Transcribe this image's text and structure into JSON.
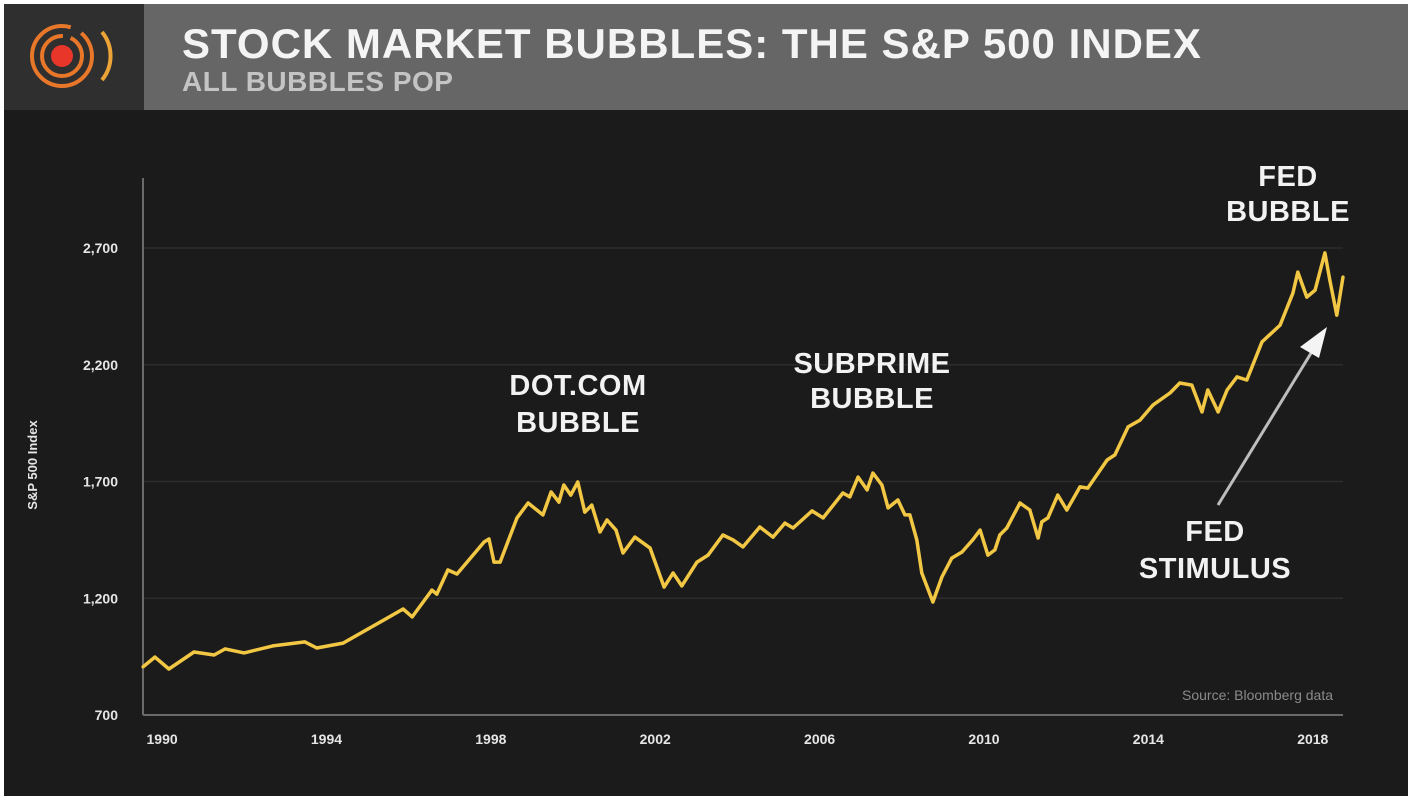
{
  "header": {
    "title": "STOCK MARKET BUBBLES: THE S&P 500 INDEX",
    "subtitle": "ALL BUBBLES POP",
    "logo_icon": "concentric-target-icon"
  },
  "colors": {
    "line": "#f2c744",
    "background": "#1b1b1b",
    "header": "#666666",
    "logo_orange": "#e8772a",
    "logo_red": "#e8362a"
  },
  "chart_data": {
    "type": "line",
    "title": "STOCK MARKET BUBBLES: THE S&P 500 INDEX",
    "subtitle": "ALL BUBBLES POP",
    "xlabel": "",
    "ylabel": "S&P 500 Index",
    "xlim": [
      1989.56,
      2018.76
    ],
    "ylim": [
      700,
      3000
    ],
    "grid": true,
    "x_ticks": [
      1990,
      1994,
      1998,
      2002,
      2006,
      2010,
      2014,
      2018
    ],
    "x_tick_labels": [
      "1990",
      "1994",
      "1998",
      "2002",
      "2006",
      "2010",
      "2014",
      "2018"
    ],
    "y_ticks": [
      700,
      1200,
      1700,
      2200,
      2700
    ],
    "y_tick_labels": [
      "700",
      "1,200",
      "1,700",
      "2,200",
      "2,700"
    ],
    "series": [
      {
        "name": "S&P 500 Index",
        "x": [
          1989.56,
          1989.85,
          1990.19,
          1990.8,
          1991.29,
          1991.56,
          1992.02,
          1992.72,
          1993.5,
          1993.79,
          1994.43,
          1995.33,
          1995.89,
          1996.11,
          1996.59,
          1996.71,
          1996.98,
          1997.2,
          1997.86,
          1997.98,
          1998.1,
          1998.25,
          1998.66,
          1998.93,
          1999.29,
          1999.49,
          1999.68,
          1999.8,
          1999.97,
          2000.14,
          2000.31,
          2000.48,
          2000.68,
          2000.85,
          2001.07,
          2001.24,
          2001.53,
          2001.9,
          2002.24,
          2002.46,
          2002.67,
          2003.04,
          2003.31,
          2003.67,
          2003.92,
          2004.16,
          2004.57,
          2004.89,
          2005.18,
          2005.38,
          2005.84,
          2006.11,
          2006.59,
          2006.76,
          2006.96,
          2007.18,
          2007.32,
          2007.54,
          2007.69,
          2007.93,
          2008.1,
          2008.22,
          2008.39,
          2008.51,
          2008.78,
          2009.0,
          2009.24,
          2009.49,
          2009.75,
          2009.93,
          2010.12,
          2010.29,
          2010.41,
          2010.58,
          2010.9,
          2011.14,
          2011.34,
          2011.43,
          2011.58,
          2011.82,
          2012.04,
          2012.36,
          2012.55,
          2013.02,
          2013.21,
          2013.53,
          2013.82,
          2014.14,
          2014.55,
          2014.79,
          2015.08,
          2015.33,
          2015.47,
          2015.72,
          2015.94,
          2016.18,
          2016.42,
          2016.79,
          2017.23,
          2017.54,
          2017.66,
          2017.88,
          2018.08,
          2018.32,
          2018.44,
          2018.61,
          2018.76
        ],
        "y": [
          906,
          948,
          897,
          970,
          957,
          983,
          966,
          996,
          1013,
          987,
          1008,
          1098,
          1154,
          1120,
          1235,
          1218,
          1321,
          1304,
          1441,
          1454,
          1355,
          1355,
          1544,
          1608,
          1557,
          1655,
          1612,
          1685,
          1642,
          1698,
          1569,
          1599,
          1484,
          1535,
          1492,
          1394,
          1462,
          1415,
          1248,
          1308,
          1253,
          1355,
          1385,
          1471,
          1450,
          1420,
          1505,
          1462,
          1522,
          1501,
          1574,
          1544,
          1651,
          1634,
          1719,
          1664,
          1736,
          1685,
          1587,
          1621,
          1557,
          1557,
          1450,
          1308,
          1184,
          1291,
          1372,
          1398,
          1450,
          1492,
          1385,
          1407,
          1471,
          1501,
          1608,
          1578,
          1458,
          1527,
          1544,
          1642,
          1578,
          1677,
          1672,
          1792,
          1814,
          1934,
          1963,
          2028,
          2079,
          2122,
          2113,
          1998,
          2092,
          1998,
          2092,
          2148,
          2135,
          2298,
          2370,
          2507,
          2597,
          2490,
          2520,
          2679,
          2563,
          2413,
          2576
        ]
      }
    ],
    "annotations": {
      "dotcom": [
        "DOT.COM",
        "BUBBLE"
      ],
      "subprime": [
        "SUBPRIME",
        "BUBBLE"
      ],
      "fed_bubble": [
        "FED",
        "BUBBLE"
      ],
      "fed_stimulus": [
        "FED",
        "STIMULUS"
      ]
    },
    "source": "Source: Bloomberg data"
  }
}
